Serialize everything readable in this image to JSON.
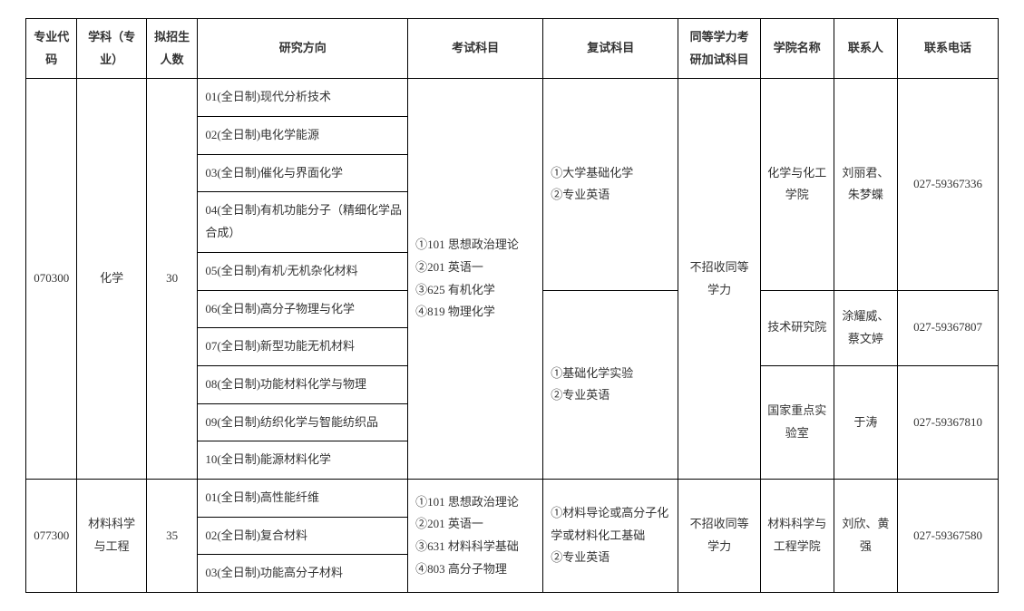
{
  "headers": {
    "code": "专业代码",
    "major": "学科（专业）",
    "quota": "拟招生人数",
    "direction": "研究方向",
    "exam": "考试科目",
    "reexam": "复试科目",
    "equivalent": "同等学力考研加试科目",
    "college": "学院名称",
    "contact": "联系人",
    "phone": "联系电话"
  },
  "r1": {
    "code": "070300",
    "major": "化学",
    "quota": "30",
    "directions": {
      "d1": "01(全日制)现代分析技术",
      "d2": "02(全日制)电化学能源",
      "d3": "03(全日制)催化与界面化学",
      "d4": "04(全日制)有机功能分子（精细化学品合成）",
      "d5": "05(全日制)有机/无机杂化材料",
      "d6": "06(全日制)高分子物理与化学",
      "d7": "07(全日制)新型功能无机材料",
      "d8": "08(全日制)功能材料化学与物理",
      "d9": "09(全日制)纺织化学与智能纺织品",
      "d10": "10(全日制)能源材料化学"
    },
    "exam": "①101 思想政治理论\n②201 英语一\n③625 有机化学\n④819 物理化学",
    "reexam1": "①大学基础化学\n②专业英语",
    "reexam2": "①基础化学实验\n②专业英语",
    "equivalent": "不招收同等学力",
    "college1": "化学与化工学院",
    "contact1": "刘丽君、朱梦蝶",
    "phone1": "027-59367336",
    "college2": "技术研究院",
    "contact2": "涂耀威、蔡文婷",
    "phone2": "027-59367807",
    "college3": "国家重点实验室",
    "contact3": "于涛",
    "phone3": "027-59367810"
  },
  "r2": {
    "code": "077300",
    "major": "材料科学与工程",
    "quota": "35",
    "directions": {
      "d1": "01(全日制)高性能纤维",
      "d2": "02(全日制)复合材料",
      "d3": "03(全日制)功能高分子材料"
    },
    "exam": "①101 思想政治理论\n②201 英语一\n③631 材料科学基础\n④803 高分子物理",
    "reexam": "①材料导论或高分子化学或材料化工基础\n②专业英语",
    "equivalent": "不招收同等学力",
    "college": "材料科学与工程学院",
    "contact": "刘欣、黄强",
    "phone": "027-59367580"
  }
}
